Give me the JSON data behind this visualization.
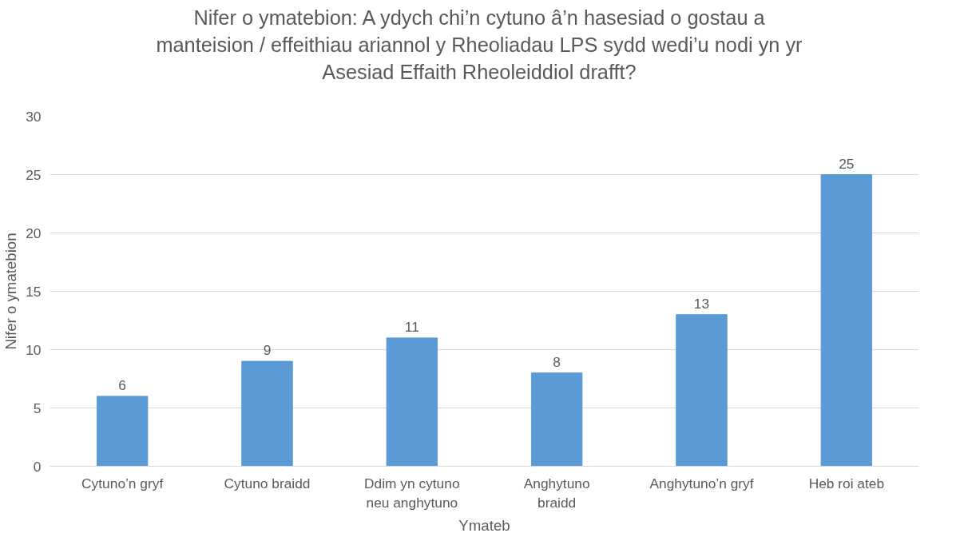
{
  "chart_data": {
    "type": "bar",
    "title": "Nifer o ymatebion: A ydych chi’n cytuno â’n hasesiad o gostau a\nmanteision / effeithiau ariannol y Rheoliadau LPS sydd wedi’u nodi yn yr\nAsesiad Effaith Rheoleiddiol drafft?",
    "xlabel": "Ymateb",
    "ylabel": "Nifer o ymatebion",
    "categories": [
      "Cytuno’n gryf",
      "Cytuno braidd",
      "Ddim yn cytuno\nneu anghytuno",
      "Anghytuno\nbraidd",
      "Anghytuno’n gryf",
      "Heb roi ateb"
    ],
    "values": [
      6,
      9,
      11,
      8,
      13,
      25
    ],
    "color": "#5b9bd5",
    "ylim": [
      0,
      30
    ],
    "yticks": [
      0,
      5,
      10,
      15,
      20,
      25,
      30
    ],
    "grid": "y",
    "data_labels": true
  }
}
